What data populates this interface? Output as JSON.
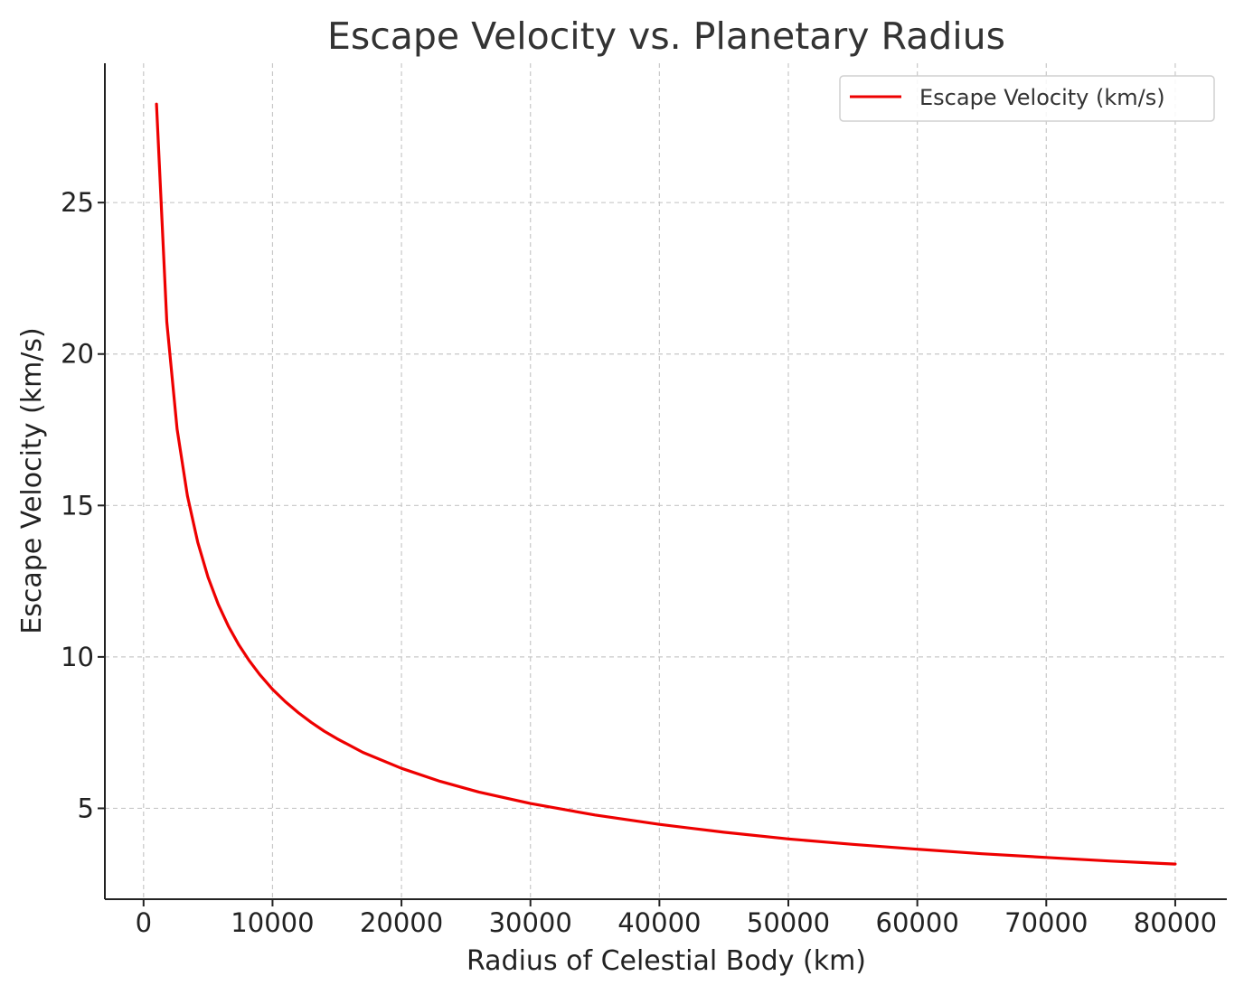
{
  "chart_data": {
    "type": "line",
    "title": "Escape Velocity vs. Planetary Radius",
    "xlabel": "Radius of Celestial Body (km)",
    "ylabel": "Escape Velocity (km/s)",
    "xlim": [
      -3000,
      84000
    ],
    "ylim": [
      2.0,
      29.6
    ],
    "x_ticks": [
      0,
      10000,
      20000,
      30000,
      40000,
      50000,
      60000,
      70000,
      80000
    ],
    "y_ticks": [
      5,
      10,
      15,
      20,
      25
    ],
    "grid": true,
    "legend": "top-right",
    "series": [
      {
        "name": "Escape Velocity (km/s)",
        "color": "#ee0000",
        "line_style": "solid",
        "x": [
          1000,
          1800,
          2600,
          3400,
          4200,
          5000,
          5800,
          6600,
          7400,
          8200,
          9000,
          10000,
          11000,
          12000,
          13000,
          14000,
          15000,
          17000,
          20000,
          23000,
          26000,
          30000,
          35000,
          40000,
          45000,
          50000,
          55000,
          60000,
          65000,
          70000,
          75000,
          80000
        ],
        "y": [
          28.25,
          21.06,
          17.52,
          15.32,
          13.79,
          12.63,
          11.73,
          11.0,
          10.39,
          9.87,
          9.42,
          8.93,
          8.52,
          8.16,
          7.84,
          7.55,
          7.3,
          6.85,
          6.32,
          5.89,
          5.54,
          5.16,
          4.78,
          4.47,
          4.21,
          3.99,
          3.81,
          3.65,
          3.5,
          3.38,
          3.26,
          3.16
        ]
      }
    ]
  }
}
